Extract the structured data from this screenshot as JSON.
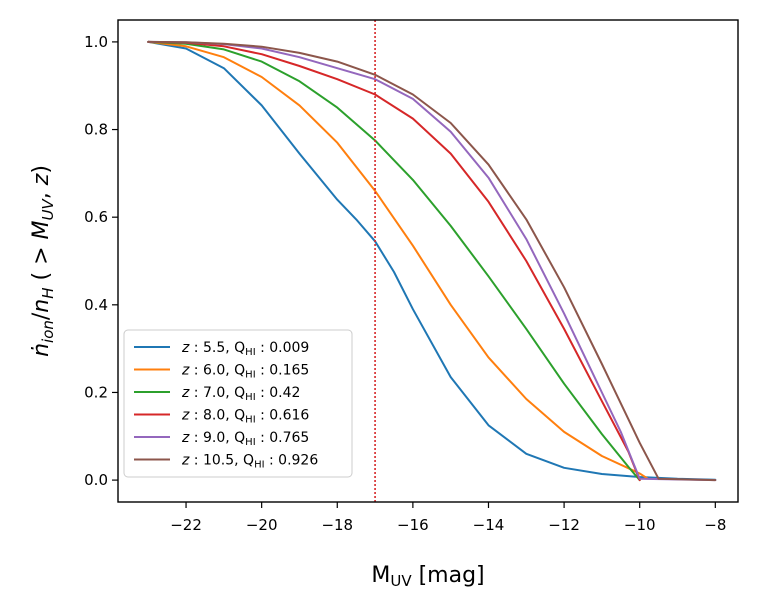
{
  "chart_data": {
    "type": "line",
    "title": "",
    "xlabel": {
      "main": "M",
      "sub": "UV",
      "suffix": " [mag]"
    },
    "ylabel": "ṅion/nH ( > MUV, z)",
    "xlim": [
      -23.8,
      -7.4
    ],
    "ylim": [
      -0.05,
      1.05
    ],
    "x_ticks": [
      -22,
      -20,
      -18,
      -16,
      -14,
      -12,
      -10,
      -8
    ],
    "x_tick_labels": [
      "−22",
      "−20",
      "−18",
      "−16",
      "−14",
      "−12",
      "−10",
      "−8"
    ],
    "y_ticks": [
      0.0,
      0.2,
      0.4,
      0.6,
      0.8,
      1.0
    ],
    "y_tick_labels": [
      "0.0",
      "0.2",
      "0.4",
      "0.6",
      "0.8",
      "1.0"
    ],
    "vline": {
      "x": -17,
      "color": "#d62728",
      "style": "dotted"
    },
    "legend_position": "lower-left",
    "series": [
      {
        "name": "z : 5.5, QHI : 0.009",
        "z": "5.5",
        "q": "0.009",
        "color": "#1f77b4",
        "x": [
          -23,
          -22,
          -21,
          -20,
          -19,
          -18,
          -17.5,
          -17,
          -16.5,
          -16,
          -15,
          -14,
          -13,
          -12,
          -11,
          -10,
          -9,
          -8
        ],
        "y": [
          1.0,
          0.985,
          0.94,
          0.855,
          0.745,
          0.64,
          0.595,
          0.545,
          0.475,
          0.39,
          0.235,
          0.125,
          0.06,
          0.028,
          0.014,
          0.007,
          0.003,
          0.001
        ]
      },
      {
        "name": "z : 6.0, QHI : 0.165",
        "z": "6.0",
        "q": "0.165",
        "color": "#ff7f0e",
        "x": [
          -23,
          -22,
          -21,
          -20,
          -19,
          -18,
          -17,
          -16,
          -15,
          -14,
          -13,
          -12,
          -11,
          -10,
          -9.8
        ],
        "y": [
          1.0,
          0.99,
          0.965,
          0.92,
          0.855,
          0.77,
          0.66,
          0.535,
          0.4,
          0.28,
          0.185,
          0.11,
          0.055,
          0.015,
          0.004
        ]
      },
      {
        "name": "z : 7.0, QHI : 0.42",
        "z": "7.0",
        "q": "0.42",
        "color": "#2ca02c",
        "x": [
          -23,
          -22,
          -21,
          -20,
          -19,
          -18,
          -17,
          -16,
          -15,
          -14,
          -13,
          -12,
          -11,
          -10.3,
          -10
        ],
        "y": [
          1.0,
          0.996,
          0.983,
          0.955,
          0.91,
          0.85,
          0.775,
          0.685,
          0.58,
          0.465,
          0.345,
          0.22,
          0.105,
          0.03,
          0.0
        ]
      },
      {
        "name": "z : 8.0, QHI : 0.616",
        "z": "8.0",
        "q": "0.616",
        "color": "#d62728",
        "x": [
          -23,
          -22,
          -21,
          -20,
          -19,
          -18,
          -17,
          -16,
          -15,
          -14,
          -13,
          -12,
          -11,
          -10.3,
          -10
        ],
        "y": [
          1.0,
          0.998,
          0.99,
          0.972,
          0.945,
          0.915,
          0.88,
          0.825,
          0.745,
          0.635,
          0.5,
          0.345,
          0.18,
          0.065,
          0.0
        ]
      },
      {
        "name": "z : 9.0, QHI : 0.765",
        "z": "9.0",
        "q": "0.765",
        "color": "#9467bd",
        "x": [
          -23,
          -22,
          -21,
          -20,
          -19,
          -18,
          -17,
          -16,
          -15,
          -14,
          -13,
          -12,
          -11,
          -10.5,
          -10,
          -8
        ],
        "y": [
          1.0,
          0.999,
          0.995,
          0.985,
          0.965,
          0.94,
          0.915,
          0.87,
          0.795,
          0.69,
          0.55,
          0.38,
          0.2,
          0.11,
          0.003,
          0.0
        ]
      },
      {
        "name": "z : 10.5, QHI : 0.926",
        "z": "10.5",
        "q": "0.926",
        "color": "#8c564b",
        "x": [
          -23,
          -22,
          -21,
          -20,
          -19,
          -18,
          -17,
          -16,
          -15,
          -14,
          -13,
          -12,
          -11,
          -10,
          -9.5,
          -8
        ],
        "y": [
          1.0,
          0.999,
          0.996,
          0.989,
          0.975,
          0.955,
          0.925,
          0.88,
          0.815,
          0.72,
          0.595,
          0.44,
          0.265,
          0.085,
          0.003,
          0.0
        ]
      }
    ]
  }
}
